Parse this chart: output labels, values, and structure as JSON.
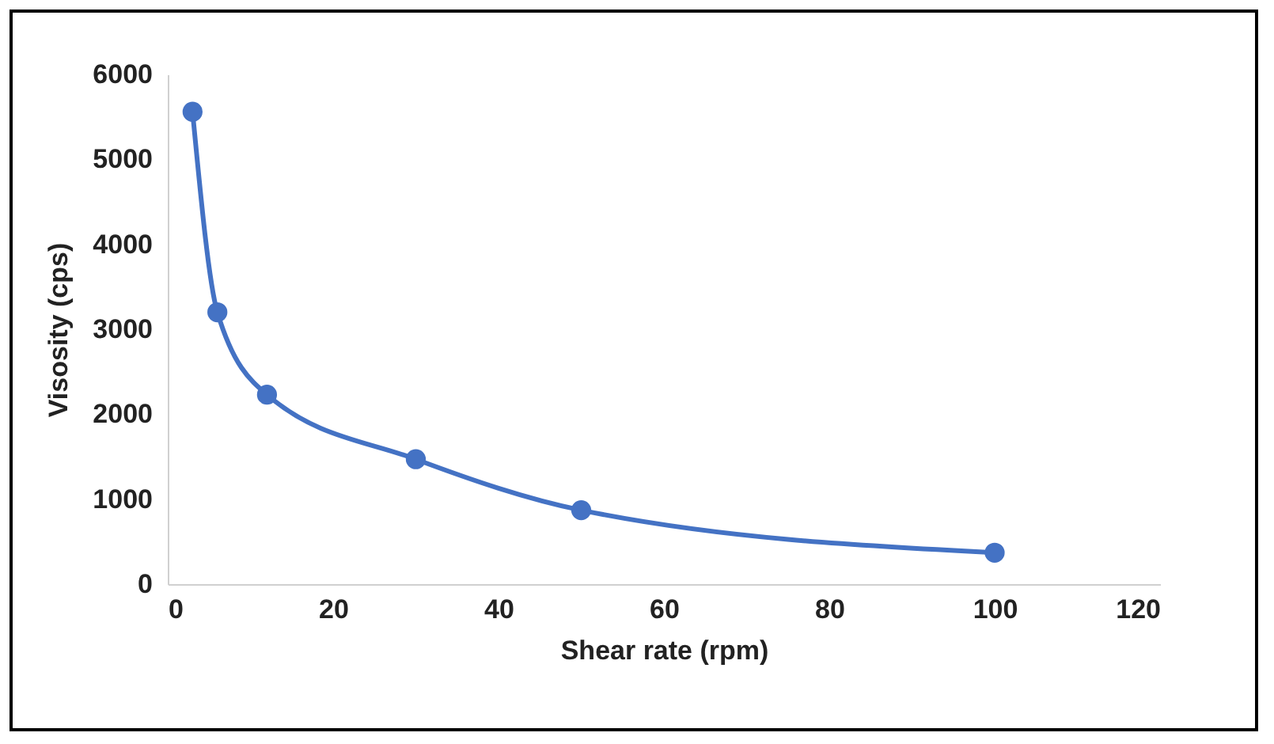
{
  "chart_data": {
    "type": "line",
    "xlabel": "Shear rate (rpm)",
    "ylabel": "Visosity (cps)",
    "x": [
      3,
      6,
      12,
      30,
      50,
      100
    ],
    "series": [
      {
        "color": "#4472c4",
        "values": [
          5560,
          3200,
          2230,
          1470,
          870,
          370
        ]
      }
    ],
    "xlim": [
      0,
      120
    ],
    "xticks": [
      0,
      20,
      40,
      60,
      80,
      100,
      120
    ],
    "ylim": [
      0,
      6000
    ],
    "yticks": [
      0,
      1000,
      2000,
      3000,
      4000,
      5000,
      6000
    ],
    "grid": false,
    "legend": false,
    "marker": "circle",
    "line_style": "solid"
  }
}
